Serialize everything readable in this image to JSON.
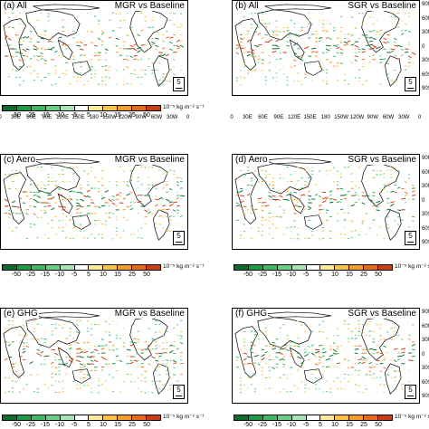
{
  "panels": [
    {
      "label": "(a) All",
      "title": "MGR vs Baseline",
      "ref": "5"
    },
    {
      "label": "(b) All",
      "title": "SGR vs Baseline",
      "ref": "5"
    },
    {
      "label": "(c) Aero",
      "title": "MGR vs Baseline",
      "ref": "5"
    },
    {
      "label": "(d) Aero",
      "title": "SGR vs Baseline",
      "ref": "5"
    },
    {
      "label": "(e) GHG",
      "title": "MGR vs Baseline",
      "ref": "5"
    },
    {
      "label": "(f) GHG",
      "title": "SGR vs Baseline",
      "ref": "5"
    }
  ],
  "lat_labels": [
    "90N",
    "60N",
    "30N",
    "0",
    "30S",
    "60S",
    "90S"
  ],
  "lon_labels": [
    "0",
    "30E",
    "60E",
    "90E",
    "120E",
    "150E",
    "180",
    "150W",
    "120W",
    "90W",
    "60W",
    "30W",
    "0"
  ],
  "colorbar": {
    "ticks": [
      "-50",
      "-25",
      "-15",
      "-10",
      "-5",
      "5",
      "10",
      "15",
      "25",
      "50"
    ],
    "unit": "10⁻⁵ kg m⁻² s⁻¹",
    "colors": [
      "#0b6e2e",
      "#1d9a48",
      "#3ab862",
      "#68cf87",
      "#a6e3b6",
      "#ffffff",
      "#fde89a",
      "#f8c348",
      "#f29c2c",
      "#e86a1f",
      "#c93d17"
    ]
  }
}
